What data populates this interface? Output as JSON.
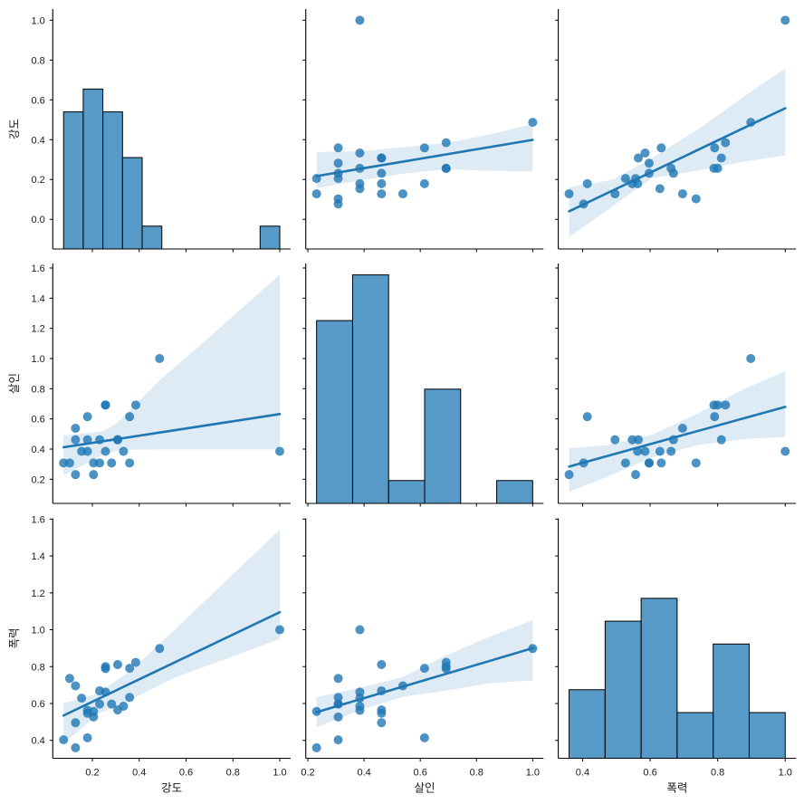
{
  "chart_data": {
    "type": "scatter",
    "kind": "pairplot",
    "title": "",
    "legend": "none",
    "grid": false,
    "variables": [
      {
        "name": "강도",
        "xlim": [
          0.031,
          1.046
        ],
        "ylim": [
          -0.149,
          1.056
        ],
        "xticks": [
          0.2,
          0.4,
          0.6,
          0.8,
          1.0
        ],
        "xtick_labels": [
          "0.2",
          "0.4",
          "0.6",
          "0.8",
          "1.0"
        ],
        "yticks": [
          0.0,
          0.2,
          0.4,
          0.6,
          0.8,
          1.0
        ],
        "ytick_labels": [
          "0.0",
          "0.2",
          "0.4",
          "0.6",
          "0.8",
          "1.0"
        ]
      },
      {
        "name": "살인",
        "xlim": [
          0.1925,
          1.0385
        ],
        "ylim": [
          0.04,
          1.63
        ],
        "xticks": [
          0.2,
          0.4,
          0.6,
          0.8,
          1.0
        ],
        "xtick_labels": [
          "0.2",
          "0.4",
          "0.6",
          "0.8",
          "1.0"
        ],
        "yticks": [
          0.2,
          0.4,
          0.6,
          0.8,
          1.0,
          1.2,
          1.4,
          1.6
        ],
        "ytick_labels": [
          "0.2",
          "0.4",
          "0.6",
          "0.8",
          "1.0",
          "1.2",
          "1.4",
          "1.6"
        ]
      },
      {
        "name": "폭력",
        "xlim": [
          0.328,
          1.032
        ],
        "ylim": [
          0.303,
          1.604
        ],
        "xticks": [
          0.4,
          0.6,
          0.8,
          1.0
        ],
        "xtick_labels": [
          "0.4",
          "0.6",
          "0.8",
          "1.0"
        ],
        "yticks": [
          0.4,
          0.6,
          0.8,
          1.0,
          1.2,
          1.4,
          1.6
        ],
        "ytick_labels": [
          "0.4",
          "0.6",
          "0.8",
          "1.0",
          "1.2",
          "1.4",
          "1.6"
        ]
      }
    ],
    "observation_columns": [
      "강도",
      "살인",
      "폭력"
    ],
    "observations": [
      [
        1.0,
        0.385,
        1.0
      ],
      [
        0.487,
        1.0,
        0.898
      ],
      [
        0.128,
        0.231,
        0.36
      ],
      [
        0.077,
        0.308,
        0.403
      ],
      [
        0.179,
        0.615,
        0.414
      ],
      [
        0.128,
        0.462,
        0.496
      ],
      [
        0.205,
        0.308,
        0.527
      ],
      [
        0.179,
        0.462,
        0.547
      ],
      [
        0.205,
        0.231,
        0.557
      ],
      [
        0.179,
        0.385,
        0.563
      ],
      [
        0.308,
        0.462,
        0.565
      ],
      [
        0.333,
        0.385,
        0.585
      ],
      [
        0.282,
        0.308,
        0.597
      ],
      [
        0.231,
        0.308,
        0.597
      ],
      [
        0.154,
        0.385,
        0.629
      ],
      [
        0.359,
        0.308,
        0.633
      ],
      [
        0.256,
        0.385,
        0.662
      ],
      [
        0.231,
        0.462,
        0.669
      ],
      [
        0.128,
        0.538,
        0.696
      ],
      [
        0.103,
        0.308,
        0.736
      ],
      [
        0.359,
        0.615,
        0.791
      ],
      [
        0.256,
        0.692,
        0.789
      ],
      [
        0.256,
        0.692,
        0.8
      ],
      [
        0.308,
        0.462,
        0.811
      ],
      [
        0.385,
        0.692,
        0.823
      ]
    ],
    "histograms": {
      "ylim": [
        0,
        10.5
      ],
      "alpha": 0.75,
      "series": [
        {
          "variable": 0,
          "range": [
            0.077,
            1.0
          ],
          "counts": [
            6,
            7,
            6,
            4,
            1,
            0,
            0,
            0,
            0,
            0,
            1
          ]
        },
        {
          "variable": 1,
          "range": [
            0.231,
            1.0
          ],
          "counts": [
            8,
            10,
            1,
            5,
            0,
            1
          ]
        },
        {
          "variable": 2,
          "range": [
            0.36,
            1.0
          ],
          "counts": [
            3,
            6,
            7,
            2,
            5,
            2
          ]
        }
      ]
    },
    "regressions": [
      {
        "x_var": 1,
        "y_var": 0,
        "line": [
          [
            0.231,
            0.217
          ],
          [
            1.0,
            0.399
          ]
        ],
        "ci_band": [
          [
            0.231,
            0.156,
            0.338
          ],
          [
            0.385,
            0.195,
            0.342
          ],
          [
            0.538,
            0.229,
            0.362
          ],
          [
            0.692,
            0.251,
            0.383
          ],
          [
            0.846,
            0.244,
            0.426
          ],
          [
            1.0,
            0.241,
            0.479
          ]
        ]
      },
      {
        "x_var": 2,
        "y_var": 0,
        "line": [
          [
            0.36,
            0.04
          ],
          [
            1.0,
            0.558
          ]
        ],
        "ci_band": [
          [
            0.36,
            -0.089,
            0.161
          ],
          [
            0.487,
            0.062,
            0.198
          ],
          [
            0.604,
            0.206,
            0.305
          ],
          [
            0.739,
            0.244,
            0.449
          ],
          [
            0.876,
            0.289,
            0.615
          ],
          [
            1.0,
            0.32,
            0.759
          ]
        ]
      },
      {
        "x_var": 0,
        "y_var": 1,
        "line": [
          [
            0.077,
            0.412
          ],
          [
            1.0,
            0.632
          ]
        ],
        "ci_band": [
          [
            0.077,
            0.226,
            0.49
          ],
          [
            0.236,
            0.356,
            0.516
          ],
          [
            0.301,
            0.39,
            0.566
          ],
          [
            0.378,
            0.396,
            0.686
          ],
          [
            0.494,
            0.398,
            0.866
          ],
          [
            0.688,
            0.398,
            1.126
          ],
          [
            1.0,
            0.398,
            1.556
          ]
        ]
      },
      {
        "x_var": 2,
        "y_var": 1,
        "line": [
          [
            0.36,
            0.284
          ],
          [
            1.0,
            0.68
          ]
        ],
        "ci_band": [
          [
            0.36,
            0.116,
            0.406
          ],
          [
            0.472,
            0.216,
            0.426
          ],
          [
            0.607,
            0.346,
            0.496
          ],
          [
            0.741,
            0.426,
            0.636
          ],
          [
            0.876,
            0.466,
            0.796
          ],
          [
            1.0,
            0.48,
            0.916
          ]
        ]
      },
      {
        "x_var": 0,
        "y_var": 2,
        "line": [
          [
            0.077,
            0.535
          ],
          [
            1.0,
            1.095
          ]
        ],
        "ci_band": [
          [
            0.077,
            0.382,
            0.603
          ],
          [
            0.168,
            0.48,
            0.63
          ],
          [
            0.232,
            0.55,
            0.66
          ],
          [
            0.297,
            0.578,
            0.72
          ],
          [
            0.361,
            0.62,
            0.775
          ],
          [
            0.555,
            0.742,
            1.004
          ],
          [
            1.0,
            0.95,
            1.543
          ]
        ]
      },
      {
        "x_var": 1,
        "y_var": 2,
        "line": [
          [
            0.231,
            0.553
          ],
          [
            1.0,
            0.9
          ]
        ],
        "ci_band": [
          [
            0.231,
            0.472,
            0.635
          ],
          [
            0.383,
            0.562,
            0.684
          ],
          [
            0.534,
            0.635,
            0.742
          ],
          [
            0.685,
            0.668,
            0.856
          ],
          [
            0.847,
            0.709,
            0.962
          ],
          [
            1.0,
            0.725,
            1.052
          ]
        ]
      }
    ],
    "colors": {
      "point": "#1f77b4",
      "line": "#1f77b4",
      "band": "#1f77b4",
      "hist_fill": "#1f77b4",
      "edge": "#000000",
      "axis": "#000000"
    }
  }
}
